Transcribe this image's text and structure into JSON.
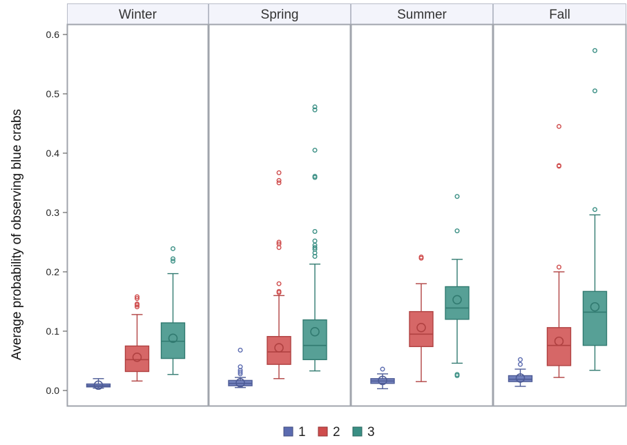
{
  "chart_data": {
    "type": "box",
    "ylabel": "Average probability of observing blue crabs",
    "ylim": [
      0,
      0.62
    ],
    "yticks": [
      0.0,
      0.1,
      0.2,
      0.3,
      0.4,
      0.5,
      0.6
    ],
    "ytick_labels": [
      "0.0",
      "0.1",
      "0.2",
      "0.3",
      "0.4",
      "0.5",
      "0.6"
    ],
    "grid": false,
    "legend_position": "bottom-center",
    "panels": [
      "Winter",
      "Spring",
      "Summer",
      "Fall"
    ],
    "series": [
      {
        "name": "1",
        "color": "#5b6bb0"
      },
      {
        "name": "2",
        "color": "#cf4c4c"
      },
      {
        "name": "3",
        "color": "#3a8f84"
      }
    ],
    "boxes": [
      {
        "panel": "Winter",
        "group": "1",
        "min": 0.004,
        "q1": 0.006,
        "median": 0.008,
        "q3": 0.011,
        "max": 0.02,
        "mean": 0.009,
        "outliers": []
      },
      {
        "panel": "Winter",
        "group": "2",
        "min": 0.016,
        "q1": 0.032,
        "median": 0.052,
        "q3": 0.075,
        "max": 0.128,
        "mean": 0.056,
        "outliers": [
          0.141,
          0.144,
          0.146,
          0.155,
          0.158
        ]
      },
      {
        "panel": "Winter",
        "group": "3",
        "min": 0.027,
        "q1": 0.054,
        "median": 0.083,
        "q3": 0.114,
        "max": 0.197,
        "mean": 0.088,
        "outliers": [
          0.218,
          0.222,
          0.239
        ]
      },
      {
        "panel": "Spring",
        "group": "1",
        "min": 0.005,
        "q1": 0.008,
        "median": 0.012,
        "q3": 0.017,
        "max": 0.022,
        "mean": 0.013,
        "outliers": [
          0.028,
          0.031,
          0.034,
          0.04,
          0.068
        ]
      },
      {
        "panel": "Spring",
        "group": "2",
        "min": 0.02,
        "q1": 0.044,
        "median": 0.065,
        "q3": 0.091,
        "max": 0.16,
        "mean": 0.072,
        "outliers": [
          0.165,
          0.167,
          0.18,
          0.241,
          0.247,
          0.25,
          0.35,
          0.354,
          0.367
        ]
      },
      {
        "panel": "Spring",
        "group": "3",
        "min": 0.033,
        "q1": 0.052,
        "median": 0.076,
        "q3": 0.119,
        "max": 0.213,
        "mean": 0.099,
        "outliers": [
          0.226,
          0.232,
          0.238,
          0.241,
          0.245,
          0.252,
          0.268,
          0.359,
          0.361,
          0.405,
          0.473,
          0.478
        ]
      },
      {
        "panel": "Summer",
        "group": "1",
        "min": 0.003,
        "q1": 0.012,
        "median": 0.016,
        "q3": 0.02,
        "max": 0.028,
        "mean": 0.017,
        "outliers": [
          0.036
        ]
      },
      {
        "panel": "Summer",
        "group": "2",
        "min": 0.015,
        "q1": 0.074,
        "median": 0.095,
        "q3": 0.133,
        "max": 0.18,
        "mean": 0.106,
        "outliers": [
          0.223,
          0.225
        ]
      },
      {
        "panel": "Summer",
        "group": "3",
        "min": 0.046,
        "q1": 0.12,
        "median": 0.139,
        "q3": 0.175,
        "max": 0.221,
        "mean": 0.153,
        "outliers": [
          0.025,
          0.027,
          0.269,
          0.327
        ]
      },
      {
        "panel": "Fall",
        "group": "1",
        "min": 0.007,
        "q1": 0.015,
        "median": 0.019,
        "q3": 0.025,
        "max": 0.036,
        "mean": 0.021,
        "outliers": [
          0.044,
          0.052
        ]
      },
      {
        "panel": "Fall",
        "group": "2",
        "min": 0.022,
        "q1": 0.042,
        "median": 0.076,
        "q3": 0.106,
        "max": 0.2,
        "mean": 0.083,
        "outliers": [
          0.208,
          0.378,
          0.379,
          0.445
        ]
      },
      {
        "panel": "Fall",
        "group": "3",
        "min": 0.034,
        "q1": 0.076,
        "median": 0.132,
        "q3": 0.167,
        "max": 0.296,
        "mean": 0.141,
        "outliers": [
          0.305,
          0.505,
          0.573
        ]
      }
    ]
  }
}
